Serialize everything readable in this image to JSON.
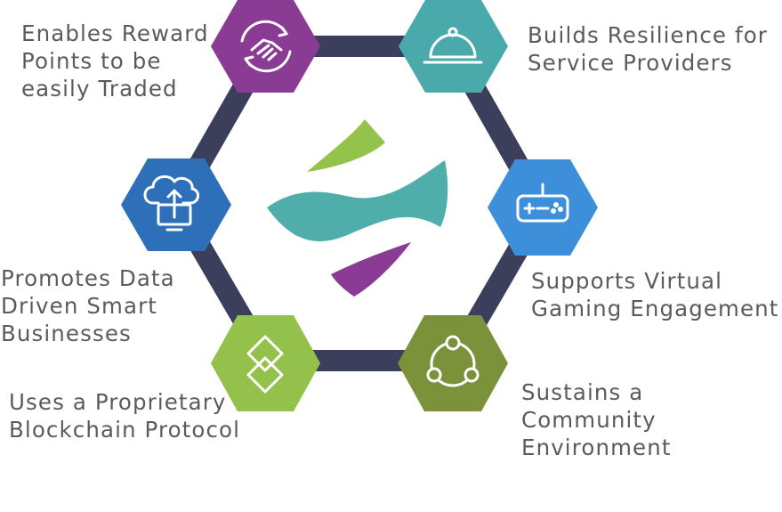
{
  "nodes": [
    {
      "id": "reward",
      "icon": "handshake-icon",
      "color": "#8a3b94",
      "label": "Enables Reward\nPoints to be\neasily Traded"
    },
    {
      "id": "resilience",
      "icon": "service-cloche-icon",
      "color": "#4aa9aa",
      "label": "Builds Resilience for\nService Providers"
    },
    {
      "id": "gaming",
      "icon": "gamepad-icon",
      "color": "#3d8fd9",
      "label": "Supports Virtual\nGaming Engagement"
    },
    {
      "id": "community",
      "icon": "community-network-icon",
      "color": "#7b923a",
      "label": "Sustains a\nCommunity\nEnvironment"
    },
    {
      "id": "blockchain",
      "icon": "chain-link-icon",
      "color": "#94c14b",
      "label": "Uses a Proprietary\nBlockchain Protocol"
    },
    {
      "id": "data",
      "icon": "cloud-upload-icon",
      "color": "#2d6fb8",
      "label": "Promotes Data\nDriven Smart\nBusinesses"
    }
  ],
  "ring_color": "#3b3f5c",
  "logo_colors": {
    "top": "#93c34a",
    "middle": "#4fadaa",
    "bottom": "#8a3b94"
  }
}
